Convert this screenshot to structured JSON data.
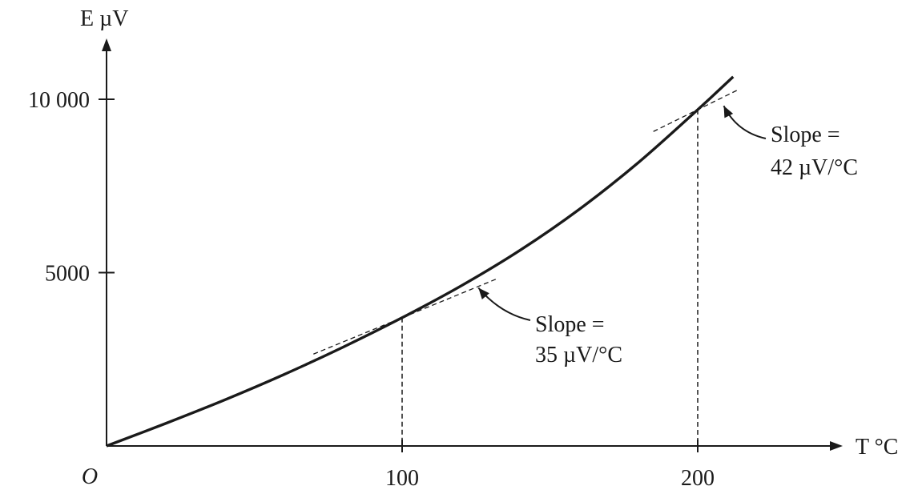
{
  "chart_data": {
    "type": "line",
    "title": "",
    "xlabel": "T °C",
    "ylabel": "E µV",
    "origin_label": "O",
    "xlim": [
      0,
      250
    ],
    "ylim": [
      0,
      11800
    ],
    "x_ticks": [
      100,
      200
    ],
    "y_ticks": [
      5000,
      10000
    ],
    "x_tick_labels": [
      "100",
      "200"
    ],
    "y_tick_labels": [
      "5000",
      "10 000"
    ],
    "grid": false,
    "legend": "none",
    "series": [
      {
        "x": [
          0,
          20,
          40,
          60,
          80,
          100,
          120,
          140,
          160,
          180,
          200,
          212
        ],
        "y": [
          0,
          650,
          1330,
          2060,
          2850,
          3700,
          4620,
          5650,
          6830,
          8180,
          9700,
          10650
        ]
      }
    ],
    "tangents": [
      {
        "x0": 100,
        "y0": 3700,
        "slope": 35,
        "x_range": [
          70,
          132
        ]
      },
      {
        "x0": 200,
        "y0": 9700,
        "slope": 42,
        "x_range": [
          185,
          214
        ]
      }
    ],
    "guides": [
      {
        "x": 100,
        "y": 3700
      },
      {
        "x": 200,
        "y": 9700
      }
    ],
    "annotations": [
      {
        "line1": "Slope =",
        "line2": "35 µV/°C",
        "target_x": 125,
        "target_y": 4700,
        "text_anchor": "below-right"
      },
      {
        "line1": "Slope =",
        "line2": "42 µV/°C",
        "target_x": 208,
        "target_y": 9950,
        "text_anchor": "right"
      }
    ]
  }
}
